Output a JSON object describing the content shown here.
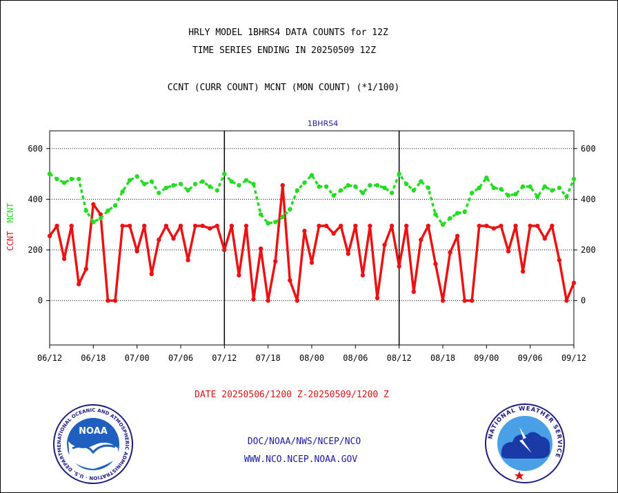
{
  "header": {
    "title_line1": "HRLY MODEL 1BHRS4 DATA COUNTS for 12Z",
    "title_line2": "TIME SERIES ENDING IN 20250509 12Z",
    "subtitle": "CCNT (CURR COUNT) MCNT (MON COUNT) (*1/100)"
  },
  "footer": {
    "date_range": "DATE 20250506/1200 Z-20250509/1200 Z",
    "org_line": "DOC/NOAA/NWS/NCEP/NCO",
    "url_line": "WWW.NCO.NCEP.NOAA.GOV"
  },
  "logos": {
    "noaa_label": "NOAA",
    "noaa_ring_text": "NATIONAL OCEANIC AND ATMOSPHERIC ADMINISTRATION · U.S. DEPARTMENT OF COMMERCE ·",
    "nws_ring_text": "NATIONAL WEATHER SERVICE"
  },
  "colors": {
    "ccnt": "#ee1111",
    "mcnt": "#22dd22",
    "panel_title": "#1a1aa0",
    "footer_red": "#dd1111",
    "footer_blue": "#1a1aa0"
  },
  "chart_data": {
    "type": "line",
    "title": "1BHRS4",
    "ylabel_ccnt": "CCNT",
    "ylabel_mcnt": "MCNT",
    "ylim": [
      -175,
      670
    ],
    "yticks": [
      0,
      200,
      400,
      600
    ],
    "ytick_labels": [
      "0",
      "200",
      "400",
      "600"
    ],
    "xlim": [
      0,
      72
    ],
    "xticks": [
      0,
      6,
      12,
      18,
      24,
      30,
      36,
      42,
      48,
      54,
      60,
      66,
      72
    ],
    "xtick_labels": [
      "06/12",
      "06/18",
      "07/00",
      "07/06",
      "07/12",
      "07/18",
      "08/00",
      "08/06",
      "08/12",
      "08/18",
      "09/00",
      "09/06",
      "09/12"
    ],
    "day_dividers": [
      24,
      48
    ],
    "grid": "horizontal",
    "series": [
      {
        "name": "CCNT",
        "values": [
          255,
          295,
          165,
          295,
          65,
          125,
          380,
          340,
          0,
          0,
          295,
          295,
          195,
          295,
          105,
          240,
          295,
          245,
          295,
          160,
          295,
          295,
          285,
          295,
          200,
          295,
          100,
          295,
          5,
          205,
          0,
          155,
          455,
          80,
          0,
          275,
          150,
          295,
          295,
          265,
          295,
          185,
          295,
          100,
          295,
          10,
          220,
          295,
          135,
          295,
          35,
          240,
          295,
          145,
          0,
          190,
          255,
          0,
          0,
          295,
          295,
          285,
          295,
          195,
          295,
          115,
          295,
          295,
          245,
          295,
          160,
          0,
          70
        ]
      },
      {
        "name": "MCNT",
        "values": [
          500,
          480,
          465,
          480,
          480,
          355,
          310,
          325,
          355,
          375,
          430,
          475,
          490,
          460,
          470,
          425,
          445,
          455,
          460,
          435,
          460,
          470,
          450,
          435,
          500,
          470,
          455,
          475,
          460,
          340,
          305,
          310,
          330,
          360,
          435,
          465,
          495,
          450,
          450,
          415,
          435,
          455,
          450,
          425,
          455,
          455,
          445,
          425,
          500,
          460,
          435,
          470,
          445,
          340,
          300,
          325,
          345,
          350,
          425,
          445,
          485,
          445,
          440,
          415,
          420,
          450,
          450,
          410,
          450,
          435,
          445,
          410,
          480
        ]
      }
    ]
  }
}
